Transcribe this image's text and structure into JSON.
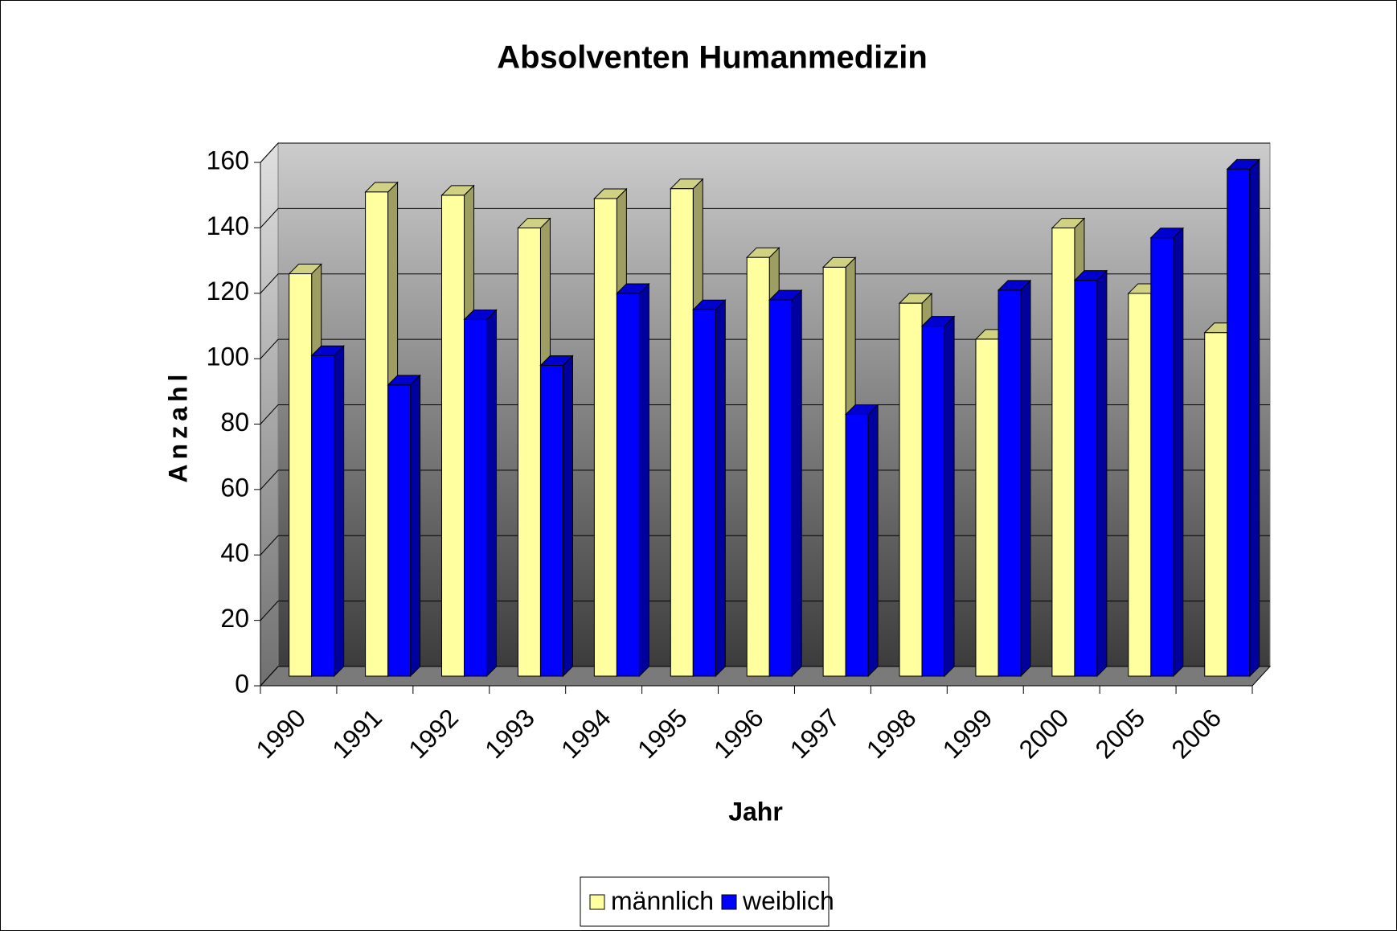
{
  "chart_data": {
    "type": "bar3d",
    "title": "Absolventen Humanmedizin",
    "x_label": "Jahr",
    "y_label": "Anzahl",
    "categories": [
      "1990",
      "1991",
      "1992",
      "1993",
      "1994",
      "1995",
      "1996",
      "1997",
      "1998",
      "1999",
      "2000",
      "2005",
      "2006"
    ],
    "series": [
      {
        "name": "männlich",
        "color": "#ffffa0",
        "values": [
          123,
          148,
          147,
          137,
          146,
          149,
          128,
          125,
          114,
          103,
          137,
          117,
          105
        ]
      },
      {
        "name": "weiblich",
        "color": "#0000ff",
        "values": [
          98,
          89,
          109,
          95,
          117,
          112,
          115,
          80,
          107,
          118,
          121,
          134,
          155
        ]
      }
    ],
    "ylim": [
      0,
      160
    ],
    "yticks": [
      0,
      20,
      40,
      60,
      80,
      100,
      120,
      140,
      160
    ],
    "grid": true,
    "legend": "bottom"
  }
}
